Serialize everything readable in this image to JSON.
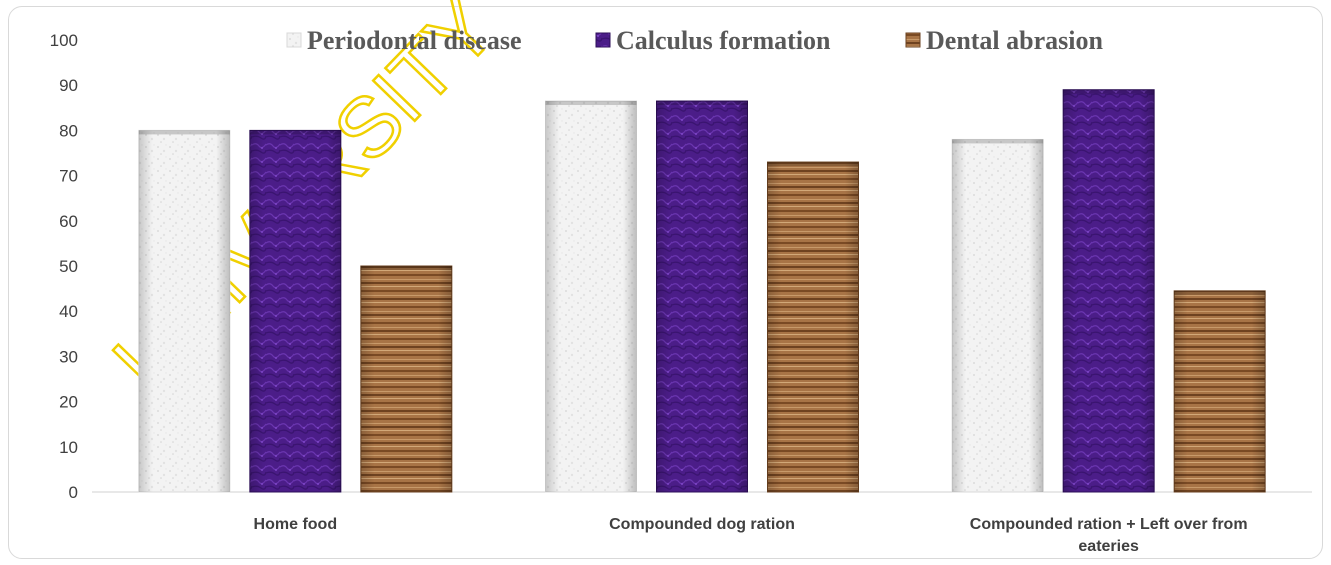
{
  "chart_data": {
    "type": "bar",
    "title": "",
    "xlabel": "",
    "ylabel": "",
    "categories": [
      [
        "Home food"
      ],
      [
        "Compounded dog ration"
      ],
      [
        "Compounded ration + Left over from",
        "eateries"
      ]
    ],
    "series": [
      {
        "name": "Periodontal disease",
        "values": [
          80,
          86.5,
          78
        ],
        "color": "#f4f4f4",
        "pattern": "speckle-white"
      },
      {
        "name": "Calculus formation",
        "values": [
          80,
          86.5,
          89
        ],
        "color": "#4a1c86",
        "pattern": "purple-texture"
      },
      {
        "name": "Dental abrasion",
        "values": [
          50,
          73,
          44.5
        ],
        "color": "#9a6a3c",
        "pattern": "wood-grain"
      }
    ],
    "yticks": [
      0,
      10,
      20,
      30,
      40,
      50,
      60,
      70,
      80,
      90,
      100
    ],
    "ylim": [
      0,
      100
    ],
    "grid": false,
    "legend_position": "top"
  },
  "watermark": {
    "text": "UNIVERSITY",
    "color": "#f0d000"
  }
}
